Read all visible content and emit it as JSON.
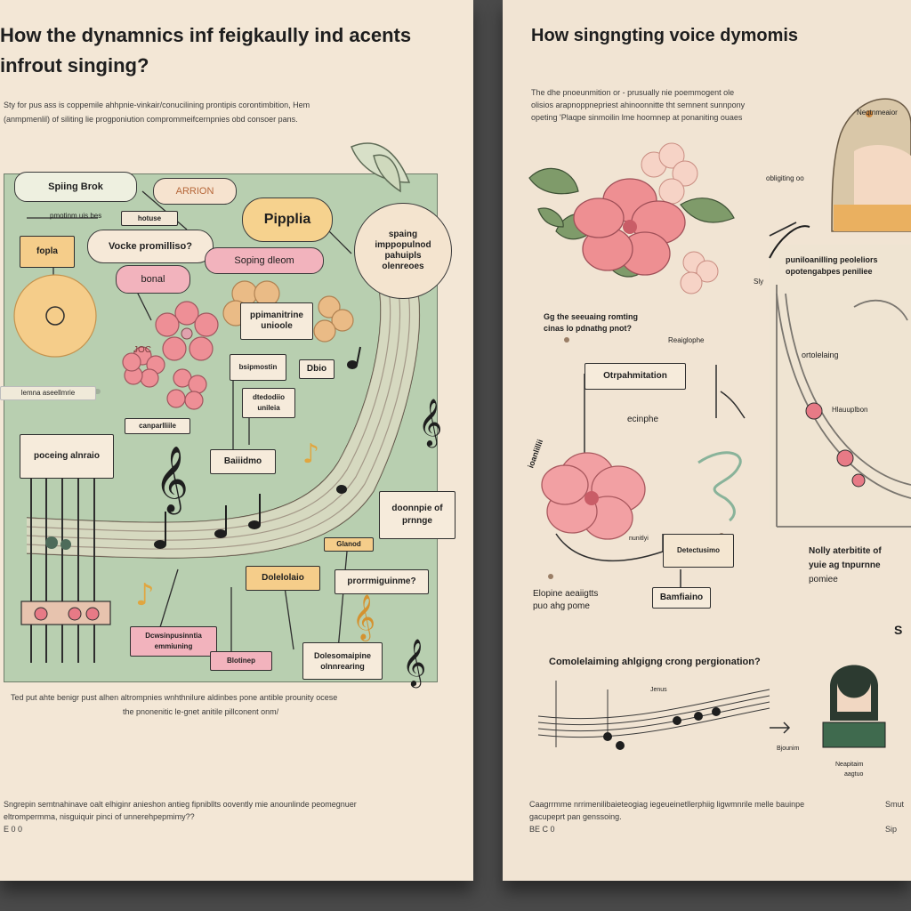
{
  "left": {
    "title_line1": "How the dynamnics inf feigkaully ind acents",
    "title_line2": "infrout singing?",
    "intro_line1": "Sty for pus ass is coppemile ahhpnie-vinkair/conucilining prontipis corontimbition,  Hem",
    "intro_line2": "(anmpmenlil) of siliting lie progponiution comprommeifcernpnies obd consoer pans.",
    "nodes": {
      "spring_brok": "Spiing Brok",
      "arrion": "ARRION",
      "pipplia": "Pipplia",
      "spaing": "spaing imppopulnod pahuipls olenreoes",
      "tag_a": "pmotinm uis bes",
      "tag_b": "hotuse",
      "fopla": "fopla",
      "vocte": "Vocke promilliso?",
      "soping": "Soping dleom",
      "borud": "bonal",
      "joc": "JOC",
      "ppimanitrine": "ppimanitrine unioole",
      "bsipmostin": "bsipmostin",
      "dblo": "Dbio",
      "dtedcidiio": "dtedodiio unileia",
      "lenna": "lemna aseellmrie",
      "canparlliile": "canparlliile",
      "baiiidmo": "Baiiidmo",
      "poceing": "poceing alnraio",
      "doonnpie": "doonnpie of prnnge",
      "glanod": "Glanod",
      "dolelolaio": "Dolelolaio",
      "promeguinme": "prorrmiguinme?",
      "dcwsi": "Dcwsinpusinntia emmiuning",
      "blotinep": "Blotinep",
      "dolesorapine": "Dolesomaipine olnnrearing"
    },
    "caption_line1": "Ted put ahte benigr pust alhen altrompnies wnhthnilure aldinbes pone antible prounity ocese",
    "caption_line2": "the pnonenitic le-gnet anitile pillconent onm/",
    "footer_line1": "Sngrepin semtnahinave oalt elhiginr anieshon antieg fipnibllts oovently mie anounlinde peomegnuer",
    "footer_line2": "eltrompermma, nisguiquir pinci of unnerehpepmimy??",
    "page_no": "E 0 0"
  },
  "right": {
    "title": "How singngting voice dymomis",
    "intro_line1": "The dhe pnoeunmition or - prusually nie poemmogent ole",
    "intro_line2": "olisios arapnoppnepriest ahinoonnitte tht semnent sunnpony",
    "intro_line3": "opeting 'Plaqpe sinmoilin lme hoomnep at ponaniting ouaes",
    "girl_caption": "Neqtnmeaior",
    "dots_label": "obligiting oo",
    "gg_label": "Gg the seeuaing romting cinas lo pdnathg pnot?",
    "reaiglophe": "Reaiglophe",
    "pumbauilling": "puniloanilling peoleliors opotengabpes peniliee",
    "sly": "Sly",
    "ortolelaing": "ortolelaing",
    "hlauuplbon": "Hlauuplbon",
    "otrpalmiation": "Otrpahmitation",
    "ecinphe": "ecinphe",
    "ionblilil": "ioanlillii",
    "nunitlyi": "nunitlyi",
    "detectusimo": "Detectusimo",
    "bamfiaino": "Bamfiaino",
    "elopine_line1": "Elopine aeaiigtts",
    "elopine_line2": "puo ahg pome",
    "nolly_line1": "Nolly aterbitite of",
    "nolly_line2": "yuie ag tnpurnne",
    "nolly_line3": "pomiee",
    "s_letter": "S",
    "lower_title": "Comolelaiming ahlgigng crong pergionation?",
    "jenus": "Jenus",
    "bjounim": "Bjounim",
    "person_caption_line1": "Neapitaim",
    "person_caption_line2": "aagtuo",
    "footer_line1": "Caagrrmme nrrimenilibaieteogiag iegeueinetllerphiig ligwmnrile melle bauinpe",
    "footer_line2": "gacupeprt pan genssoing.",
    "page_no": "BE C 0",
    "right_edge_1": "Smut",
    "right_edge_2": "Sip"
  },
  "colors": {
    "paper": "#f3e7d6",
    "panel_green": "#b8cfb0",
    "pink": "#f2b3bd",
    "peach": "#f4c98c",
    "flower": "#e9888a",
    "ink": "#1e1e1e"
  }
}
